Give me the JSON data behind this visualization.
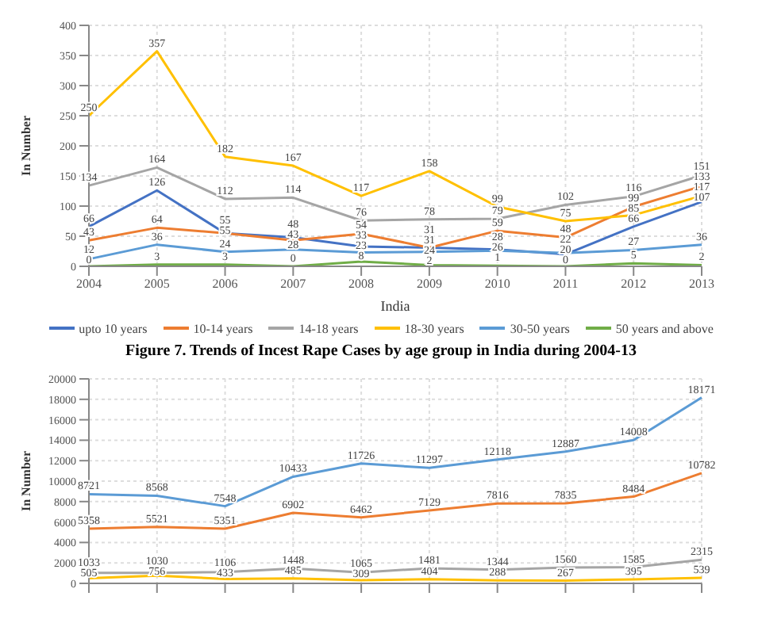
{
  "chart_data": [
    {
      "type": "line",
      "xlabel": "India",
      "ylabel": "In Number",
      "annotations": [
        "Figure 7. Trends of Incest Rape Cases by age group in India during 2004-13"
      ],
      "categories": [
        "2004",
        "2005",
        "2006",
        "2007",
        "2008",
        "2009",
        "2010",
        "2011",
        "2012",
        "2013"
      ],
      "series": [
        {
          "name": "upto 10 years",
          "color": "#4472c4",
          "values": [
            66,
            126,
            55,
            48,
            33,
            31,
            28,
            20,
            66,
            107
          ]
        },
        {
          "name": "10-14 years",
          "color": "#ed7d31",
          "values": [
            43,
            64,
            55,
            43,
            54,
            31,
            59,
            48,
            99,
            133
          ]
        },
        {
          "name": "14-18 years",
          "color": "#a5a5a5",
          "values": [
            134,
            164,
            112,
            114,
            76,
            78,
            79,
            102,
            116,
            151
          ]
        },
        {
          "name": "18-30 years",
          "color": "#ffc000",
          "values": [
            250,
            357,
            182,
            167,
            117,
            158,
            99,
            75,
            85,
            117
          ]
        },
        {
          "name": "30-50 years",
          "color": "#5b9bd5",
          "values": [
            12,
            36,
            24,
            28,
            23,
            24,
            26,
            22,
            27,
            36
          ]
        },
        {
          "name": "50 years and above",
          "color": "#70ad47",
          "values": [
            0,
            3,
            3,
            0,
            8,
            2,
            1,
            0,
            5,
            2
          ]
        }
      ],
      "ylim": [
        0,
        400
      ],
      "yticks": [
        0,
        50,
        100,
        150,
        200,
        250,
        300,
        350,
        400
      ],
      "grid": true,
      "legend": "bottom",
      "data_labels": true,
      "marker": "none",
      "line_style": "solid"
    },
    {
      "type": "line",
      "ylabel": "In Number",
      "categories": [
        null,
        null,
        null,
        null,
        null,
        null,
        null,
        null,
        null,
        null
      ],
      "series": [
        {
          "color": "#5b9bd5",
          "values": [
            8721,
            8568,
            7548,
            10433,
            11726,
            11297,
            12118,
            12887,
            14008,
            18171
          ]
        },
        {
          "color": "#ed7d31",
          "values": [
            5358,
            5521,
            5351,
            6902,
            6462,
            7129,
            7816,
            7835,
            8484,
            10782
          ]
        },
        {
          "color": "#a5a5a5",
          "values": [
            1033,
            1030,
            1106,
            1448,
            1065,
            1481,
            1344,
            1560,
            1585,
            2315
          ]
        },
        {
          "color": "#ffc000",
          "values": [
            505,
            756,
            433,
            485,
            309,
            404,
            288,
            267,
            395,
            539
          ]
        }
      ],
      "ylim": [
        0,
        20000
      ],
      "yticks": [
        0,
        2000,
        4000,
        6000,
        8000,
        10000,
        12000,
        14000,
        16000,
        18000,
        20000
      ],
      "grid": true,
      "tick_labels": "y",
      "data_labels": true,
      "marker": "none",
      "line_style": "solid"
    }
  ]
}
